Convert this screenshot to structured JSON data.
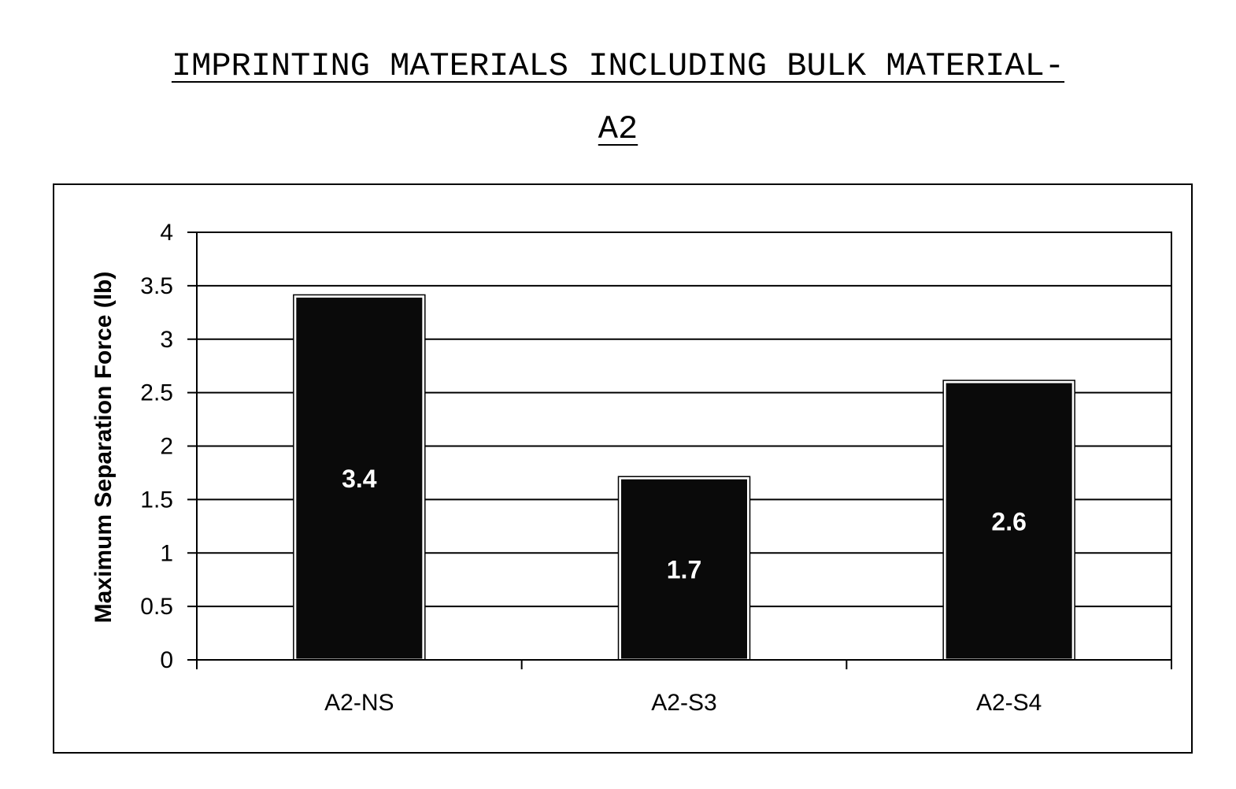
{
  "title": {
    "line1": "IMPRINTING MATERIALS INCLUDING BULK MATERIAL-",
    "line2": "A2"
  },
  "chart_data": {
    "type": "bar",
    "categories": [
      "A2-NS",
      "A2-S3",
      "A2-S4"
    ],
    "values": [
      3.4,
      1.7,
      2.6
    ],
    "data_labels": [
      "3.4",
      "1.7",
      "2.6"
    ],
    "ylabel": "Maximum Separation Force (lb)",
    "xlabel": "",
    "ylim": [
      0,
      4
    ],
    "yticks": [
      "0",
      "0.5",
      "1",
      "1.5",
      "2",
      "2.5",
      "3",
      "3.5",
      "4"
    ],
    "grid": true,
    "legend": "none",
    "bar_color": "#0a0a0a"
  }
}
